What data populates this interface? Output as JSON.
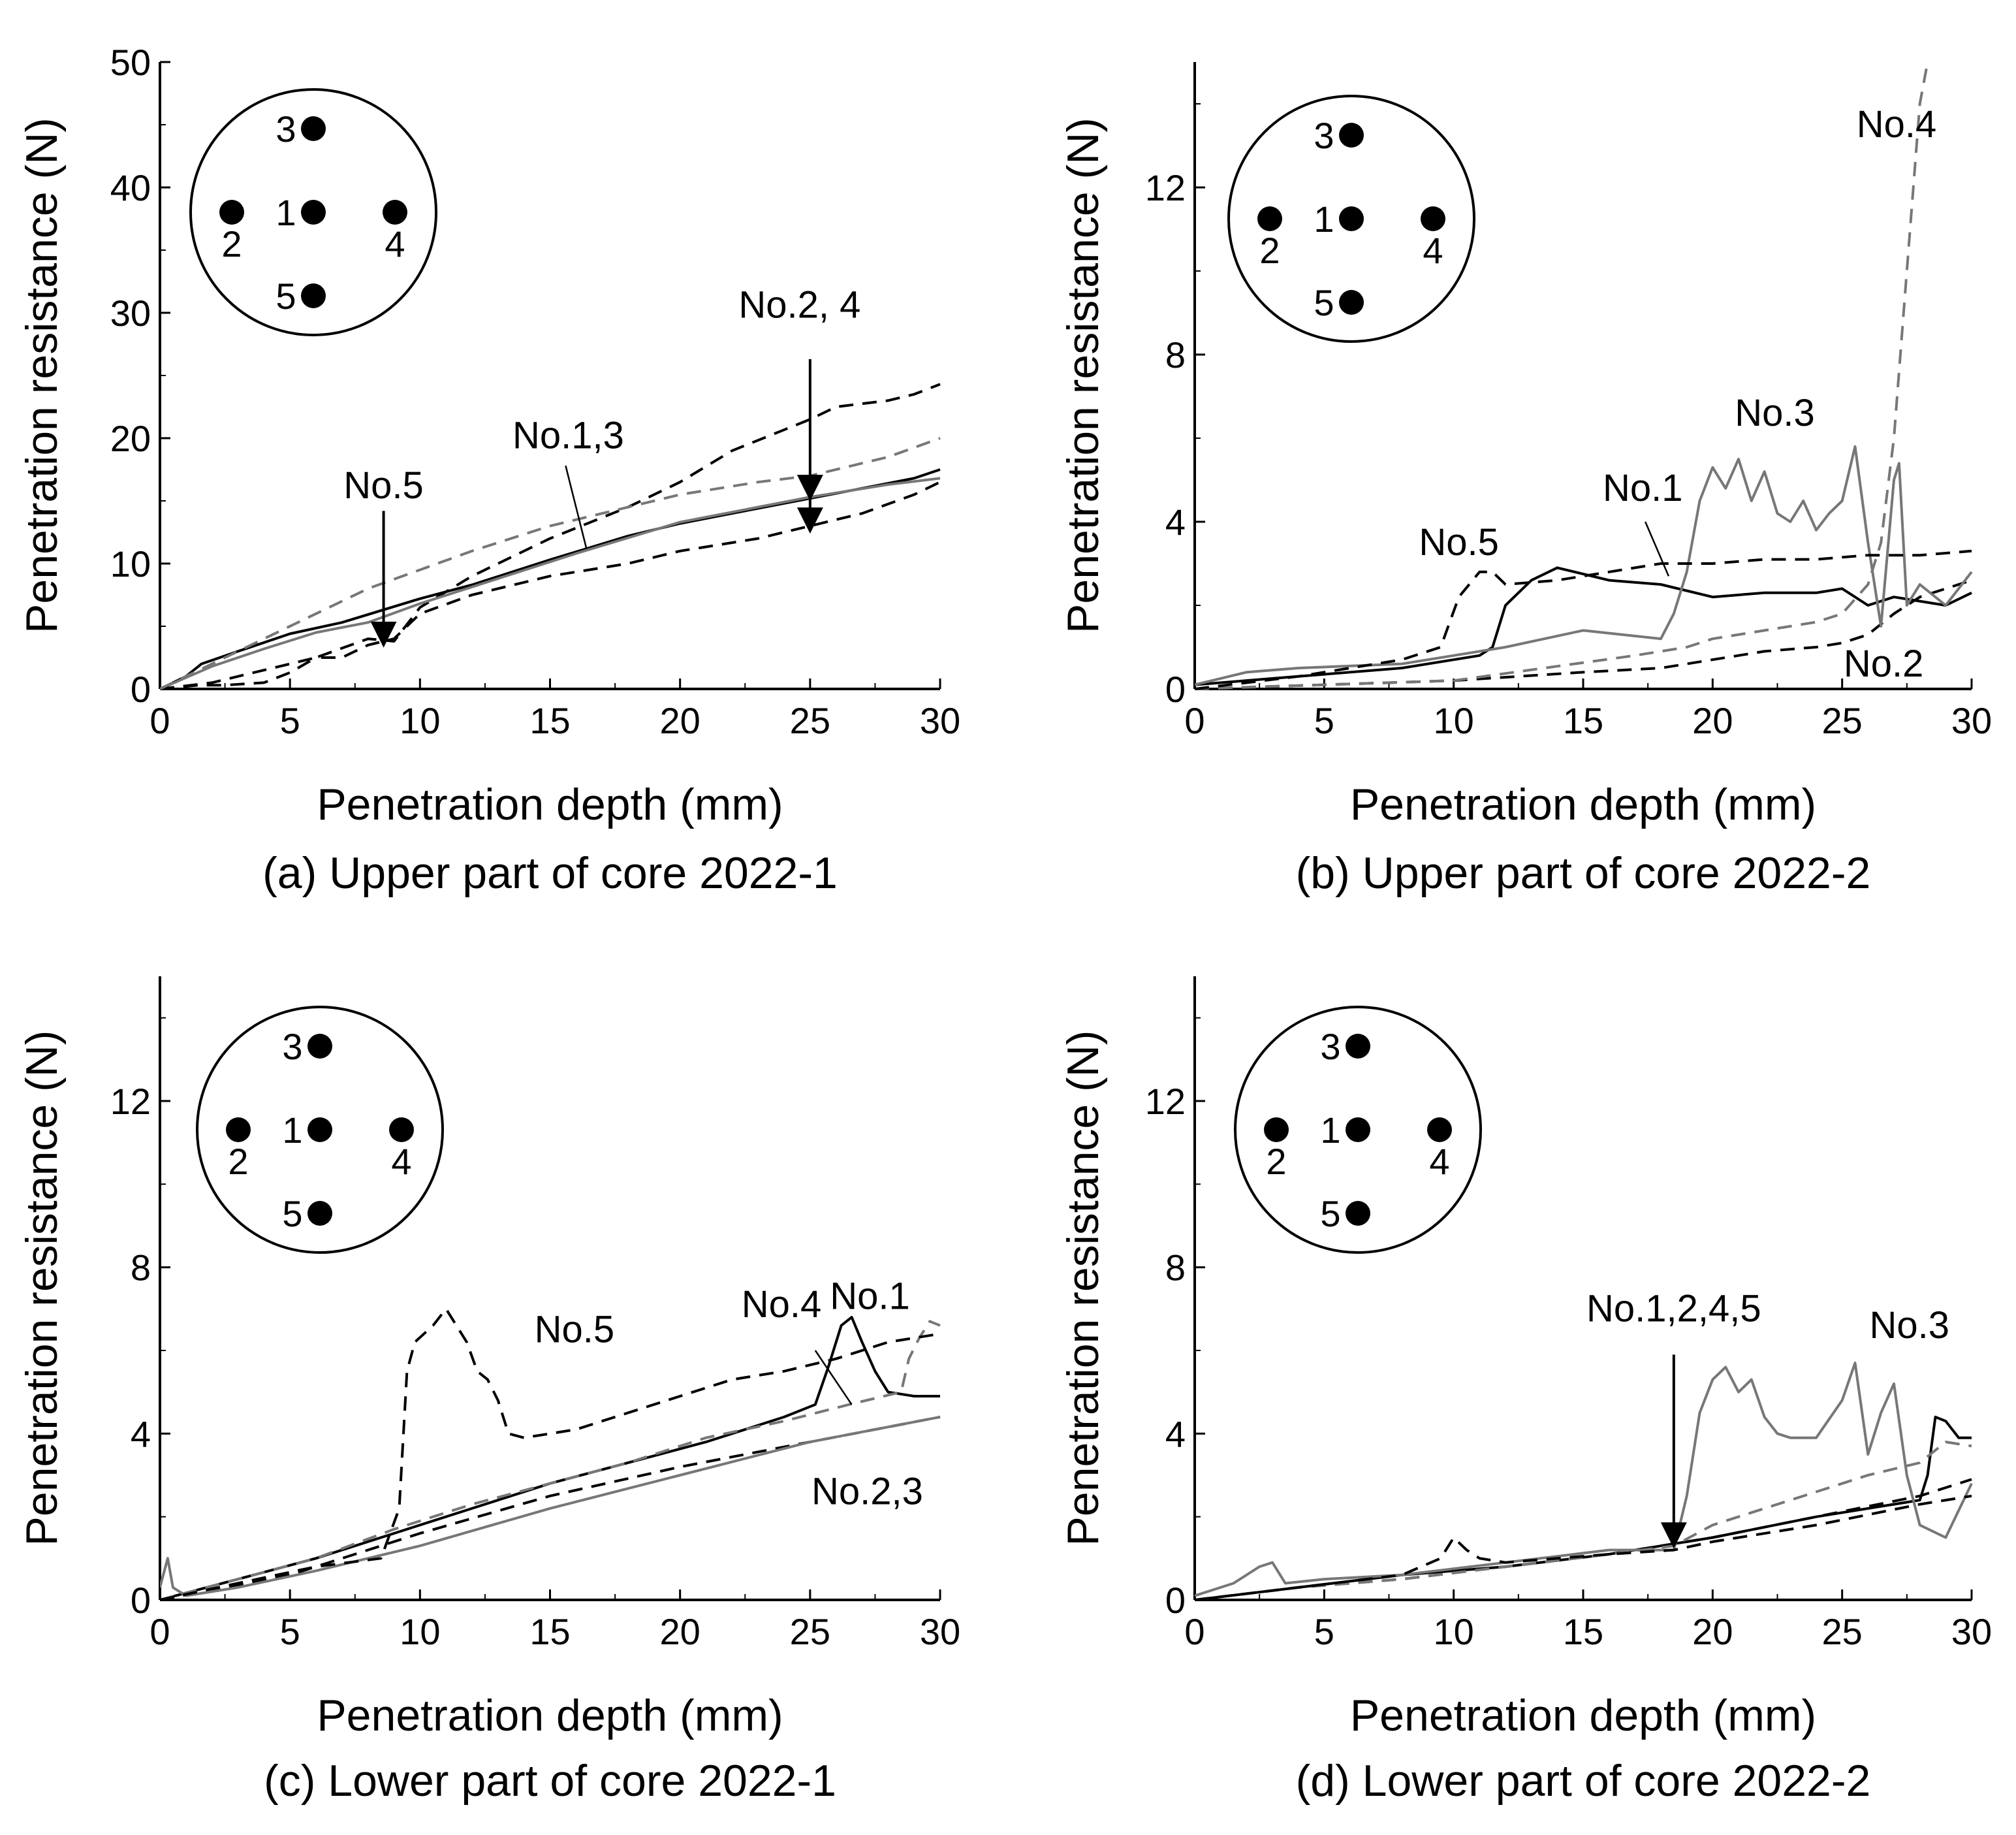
{
  "chart_data": [
    {
      "type": "line",
      "caption": "(a) Upper part of core 2022-1",
      "xlabel": "Penetration depth (mm)",
      "ylabel": "Penetration resistance (N)",
      "xlim": [
        0,
        30
      ],
      "ylim": [
        0,
        50
      ],
      "xticks": [
        0,
        5,
        10,
        15,
        20,
        25,
        30
      ],
      "yticks": [
        0,
        10,
        20,
        30,
        40,
        50
      ],
      "series": [
        {
          "name": "No.1",
          "color": "#000000",
          "dashed": false,
          "x": [
            0,
            1,
            1.6,
            3,
            5,
            7,
            10,
            12,
            15,
            18,
            20,
            22,
            25,
            27,
            29,
            30
          ],
          "y": [
            0,
            1,
            2,
            3,
            4.4,
            5.3,
            7.2,
            8.3,
            10.3,
            12.2,
            13.2,
            14,
            15.2,
            16,
            16.8,
            17.5
          ]
        },
        {
          "name": "No.2",
          "color": "#000000",
          "dashed": true,
          "x": [
            0,
            1.5,
            2.5,
            4,
            5,
            6,
            8,
            9,
            10,
            12,
            15,
            18,
            20,
            22,
            25,
            26,
            28,
            29,
            30
          ],
          "y": [
            0,
            0.3,
            0.3,
            0.5,
            1.3,
            2.5,
            4,
            3.8,
            6.5,
            9,
            12,
            14.5,
            16.5,
            19,
            21.5,
            22.5,
            23,
            23.5,
            24.3
          ]
        },
        {
          "name": "No.3",
          "color": "#777777",
          "dashed": false,
          "x": [
            0,
            2,
            4,
            6,
            8,
            10,
            13,
            16,
            20,
            25,
            28,
            30
          ],
          "y": [
            0,
            1.8,
            3.2,
            4.5,
            5.3,
            6.8,
            8.8,
            10.8,
            13.3,
            15.3,
            16.3,
            16.8
          ]
        },
        {
          "name": "No.4",
          "color": "#000000",
          "dashed": true,
          "x": [
            0,
            2,
            4,
            6,
            7,
            8,
            9,
            10,
            12,
            15,
            18,
            20,
            23,
            25,
            27,
            29,
            30
          ],
          "y": [
            0,
            0.5,
            1.5,
            2.5,
            2.5,
            3.5,
            4,
            6,
            7.5,
            9,
            10,
            11,
            12,
            13,
            14,
            15.5,
            16.5
          ]
        },
        {
          "name": "No.5",
          "color": "#777777",
          "dashed": true,
          "x": [
            0,
            2,
            4,
            6,
            8,
            10,
            12,
            15,
            18,
            20,
            23,
            25,
            28,
            30
          ],
          "y": [
            0,
            2,
            4,
            6,
            8,
            9.5,
            11,
            13,
            14.5,
            15.5,
            16.5,
            17,
            18.5,
            20
          ]
        }
      ],
      "annotations": [
        {
          "text": "No.5",
          "x": 8.6,
          "y": 15.2
        },
        {
          "text": "No.1,3",
          "x": 15.7,
          "y": 19.2
        },
        {
          "text": "No.2, 4",
          "x": 24.6,
          "y": 29.6
        }
      ],
      "inset": {
        "labels": [
          "1",
          "2",
          "3",
          "4",
          "5"
        ]
      }
    },
    {
      "type": "line",
      "caption": "(b) Upper part of core 2022-2",
      "xlabel": "Penetration depth (mm)",
      "ylabel": "Penetration resistance (N)",
      "xlim": [
        0,
        30
      ],
      "ylim": [
        0,
        15
      ],
      "xticks": [
        0,
        5,
        10,
        15,
        20,
        25,
        30
      ],
      "yticks": [
        0,
        4,
        8,
        12
      ],
      "series": [
        {
          "name": "No.1",
          "color": "#000000",
          "dashed": false,
          "x": [
            0,
            4,
            8,
            11,
            11.5,
            12,
            13,
            14,
            16,
            18,
            20,
            22,
            24,
            25,
            26,
            27,
            28,
            29,
            30
          ],
          "y": [
            0.1,
            0.3,
            0.5,
            0.8,
            1,
            2,
            2.6,
            2.9,
            2.6,
            2.5,
            2.2,
            2.3,
            2.3,
            2.4,
            2,
            2.2,
            2.1,
            2,
            2.3
          ]
        },
        {
          "name": "No.2",
          "color": "#000000",
          "dashed": true,
          "x": [
            0,
            5,
            10,
            15,
            18,
            20,
            22,
            24,
            25,
            26,
            27,
            28,
            30
          ],
          "y": [
            0,
            0.1,
            0.2,
            0.4,
            0.5,
            0.7,
            0.9,
            1,
            1.1,
            1.3,
            1.8,
            2.2,
            2.6
          ]
        },
        {
          "name": "No.3",
          "color": "#777777",
          "dashed": false,
          "x": [
            0,
            2,
            4,
            8,
            10,
            12,
            15,
            18,
            18.5,
            19,
            19.5,
            20,
            20.5,
            21,
            21.5,
            22,
            22.5,
            23,
            23.5,
            24,
            24.5,
            25,
            25.5,
            26,
            26.5,
            27,
            27.2,
            27.5,
            28,
            29,
            30
          ],
          "y": [
            0.1,
            0.4,
            0.5,
            0.6,
            0.8,
            1,
            1.4,
            1.2,
            1.8,
            2.8,
            4.5,
            5.3,
            4.8,
            5.5,
            4.5,
            5.2,
            4.2,
            4,
            4.5,
            3.8,
            4.2,
            4.5,
            5.8,
            3.5,
            1.5,
            5,
            5.4,
            2,
            2.5,
            2,
            2.8
          ]
        },
        {
          "name": "No.4",
          "color": "#777777",
          "dashed": true,
          "x": [
            0,
            10,
            17,
            19,
            20,
            22,
            24,
            25,
            26,
            26.5,
            27,
            27.5,
            28,
            28.3
          ],
          "y": [
            0,
            0.2,
            0.8,
            1,
            1.2,
            1.4,
            1.6,
            1.8,
            2.5,
            3.5,
            6,
            10,
            14,
            15
          ]
        },
        {
          "name": "No.5",
          "color": "#000000",
          "dashed": true,
          "x": [
            0,
            4,
            6,
            8,
            9.5,
            10.2,
            11,
            11.5,
            12,
            14,
            16,
            18,
            20,
            22,
            24,
            26,
            28,
            30
          ],
          "y": [
            0,
            0.3,
            0.5,
            0.7,
            1,
            2.2,
            2.8,
            2.8,
            2.5,
            2.6,
            2.8,
            3,
            3,
            3.1,
            3.1,
            3.2,
            3.2,
            3.3
          ]
        }
      ],
      "annotations": [
        {
          "text": "No.4",
          "x": 27.1,
          "y": 13.2
        },
        {
          "text": "No.3",
          "x": 22.4,
          "y": 6.3
        },
        {
          "text": "No.1",
          "x": 17.3,
          "y": 4.5
        },
        {
          "text": "No.5",
          "x": 10.2,
          "y": 3.2
        },
        {
          "text": "No.2",
          "x": 26.6,
          "y": 0.3
        }
      ],
      "inset": {
        "labels": [
          "1",
          "2",
          "3",
          "4",
          "5"
        ]
      }
    },
    {
      "type": "line",
      "caption": "(c) Lower part of core 2022-1",
      "xlabel": "Penetration depth (mm)",
      "ylabel": "Penetration resistance (N)",
      "xlim": [
        0,
        30
      ],
      "ylim": [
        0,
        15
      ],
      "xticks": [
        0,
        5,
        10,
        15,
        20,
        25,
        30
      ],
      "yticks": [
        0,
        4,
        8,
        12
      ],
      "series": [
        {
          "name": "No.1",
          "color": "#000000",
          "dashed": false,
          "x": [
            0,
            3,
            6,
            9,
            12,
            15,
            18,
            21,
            24,
            25.2,
            25.7,
            26.2,
            26.6,
            27,
            27.5,
            28,
            29,
            30
          ],
          "y": [
            0,
            0.5,
            1,
            1.6,
            2.2,
            2.8,
            3.3,
            3.8,
            4.4,
            4.7,
            5.6,
            6.6,
            6.8,
            6.2,
            5.5,
            5,
            4.9,
            4.9
          ]
        },
        {
          "name": "No.2",
          "color": "#000000",
          "dashed": true,
          "x": [
            0,
            5,
            10,
            15,
            20,
            25,
            30
          ],
          "y": [
            0,
            0.6,
            1.6,
            2.5,
            3.2,
            3.8,
            4.4
          ]
        },
        {
          "name": "No.3",
          "color": "#777777",
          "dashed": false,
          "x": [
            0,
            0.3,
            0.5,
            1,
            3,
            6,
            10,
            15,
            20,
            25,
            30
          ],
          "y": [
            0.3,
            1,
            0.3,
            0.1,
            0.3,
            0.7,
            1.3,
            2.2,
            3,
            3.8,
            4.4
          ]
        },
        {
          "name": "No.4",
          "color": "#777777",
          "dashed": true,
          "x": [
            0,
            3,
            6,
            9,
            12,
            15,
            18,
            21,
            24,
            26.5,
            28.5,
            28.8,
            29.2,
            29.6,
            30
          ],
          "y": [
            0,
            0.5,
            1,
            1.7,
            2.3,
            2.8,
            3.3,
            3.9,
            4.3,
            4.7,
            5,
            5.8,
            6.3,
            6.7,
            6.6
          ]
        },
        {
          "name": "No.5",
          "color": "#000000",
          "dashed": true,
          "x": [
            0,
            3,
            6,
            8.5,
            9.2,
            9.5,
            9.8,
            10.5,
            11,
            11.4,
            11.8,
            12.2,
            12.6,
            13,
            13.4,
            14,
            16,
            18,
            20,
            22,
            24,
            26,
            28,
            30
          ],
          "y": [
            0,
            0.4,
            0.8,
            1,
            2.2,
            5.5,
            6.2,
            6.6,
            7,
            6.6,
            6.2,
            5.5,
            5.3,
            4.8,
            4,
            3.9,
            4.1,
            4.5,
            4.9,
            5.3,
            5.5,
            5.8,
            6.2,
            6.4
          ]
        }
      ],
      "annotations": [
        {
          "text": "No.5",
          "x": 14.4,
          "y": 6.2
        },
        {
          "text": "No.4",
          "x": 23.9,
          "y": 6.8
        },
        {
          "text": "No.1",
          "x": 27.3,
          "y": 7
        },
        {
          "text": "No.2,3",
          "x": 27.2,
          "y": 2.3
        }
      ],
      "inset": {
        "labels": [
          "1",
          "2",
          "3",
          "4",
          "5"
        ]
      }
    },
    {
      "type": "line",
      "caption": "(d) Lower part of core 2022-2",
      "xlabel": "Penetration depth (mm)",
      "ylabel": "Penetration resistance (N)",
      "xlim": [
        0,
        30
      ],
      "ylim": [
        0,
        15
      ],
      "xticks": [
        0,
        5,
        10,
        15,
        20,
        25,
        30
      ],
      "yticks": [
        0,
        4,
        8,
        12
      ],
      "series": [
        {
          "name": "No.1",
          "color": "#000000",
          "dashed": false,
          "x": [
            0,
            4,
            8,
            12,
            16,
            20,
            24,
            28,
            28.3,
            28.6,
            29,
            29.5,
            30
          ],
          "y": [
            0,
            0.3,
            0.6,
            0.8,
            1.1,
            1.5,
            2,
            2.4,
            3,
            4.4,
            4.3,
            3.9,
            3.9
          ]
        },
        {
          "name": "No.2",
          "color": "#000000",
          "dashed": true,
          "x": [
            0,
            4,
            8,
            12,
            16,
            20,
            24,
            28,
            30
          ],
          "y": [
            0,
            0.3,
            0.5,
            0.8,
            1.1,
            1.5,
            2,
            2.5,
            2.9
          ]
        },
        {
          "name": "No.3",
          "color": "#777777",
          "dashed": false,
          "x": [
            0,
            1.5,
            2.5,
            3,
            3.5,
            5,
            8,
            12,
            16,
            18.5,
            19,
            19.5,
            20,
            20.5,
            21,
            21.5,
            22,
            22.5,
            23,
            24,
            25,
            25.5,
            26,
            26.5,
            27,
            27.5,
            28,
            29,
            30
          ],
          "y": [
            0.1,
            0.4,
            0.8,
            0.9,
            0.4,
            0.5,
            0.6,
            0.9,
            1.2,
            1.2,
            2.5,
            4.5,
            5.3,
            5.6,
            5,
            5.3,
            4.4,
            4,
            3.9,
            3.9,
            4.8,
            5.7,
            3.5,
            4.5,
            5.2,
            3,
            1.8,
            1.5,
            2.8
          ]
        },
        {
          "name": "No.4",
          "color": "#777777",
          "dashed": true,
          "x": [
            0,
            4,
            8,
            12,
            16,
            18.5,
            20,
            22,
            24,
            26,
            28,
            29,
            30
          ],
          "y": [
            0,
            0.3,
            0.5,
            0.8,
            1.1,
            1.3,
            1.8,
            2.2,
            2.6,
            3,
            3.3,
            3.8,
            3.7
          ]
        },
        {
          "name": "No.5",
          "color": "#000000",
          "dashed": true,
          "x": [
            0,
            4,
            8,
            9.5,
            10,
            10.5,
            11,
            12,
            16,
            18.5,
            20,
            24,
            28,
            30
          ],
          "y": [
            0,
            0.3,
            0.6,
            1,
            1.5,
            1.2,
            1,
            0.9,
            1.1,
            1.2,
            1.4,
            1.8,
            2.3,
            2.5
          ]
        }
      ],
      "annotations": [
        {
          "text": "No.1,2,4,5",
          "x": 18.5,
          "y": 6.7
        },
        {
          "text": "No.3",
          "x": 27.6,
          "y": 6.3
        }
      ],
      "inset": {
        "labels": [
          "1",
          "2",
          "3",
          "4",
          "5"
        ]
      }
    }
  ]
}
